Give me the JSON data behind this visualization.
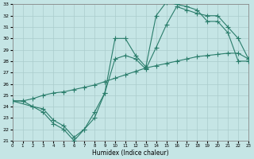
{
  "xlabel": "Humidex (Indice chaleur)",
  "xlim": [
    0,
    23
  ],
  "ylim": [
    21,
    33
  ],
  "xticks": [
    0,
    1,
    2,
    3,
    4,
    5,
    6,
    7,
    8,
    9,
    10,
    11,
    12,
    13,
    14,
    15,
    16,
    17,
    18,
    19,
    20,
    21,
    22,
    23
  ],
  "yticks": [
    21,
    22,
    23,
    24,
    25,
    26,
    27,
    28,
    29,
    30,
    31,
    32,
    33
  ],
  "line_color": "#2a7d6b",
  "bg_color": "#c5e5e5",
  "grid_color": "#aacccc",
  "line1_x": [
    0,
    1,
    2,
    3,
    4,
    5,
    6,
    7,
    8,
    9,
    10,
    11,
    12,
    13,
    14,
    15,
    16,
    17,
    18,
    19,
    20,
    21,
    22,
    23
  ],
  "line1_y": [
    24.5,
    24.5,
    24.0,
    23.5,
    22.5,
    22.0,
    21.0,
    22.0,
    23.0,
    25.2,
    30.0,
    30.0,
    28.5,
    27.5,
    32.0,
    33.2,
    33.0,
    32.8,
    32.5,
    31.5,
    31.5,
    30.5,
    28.0,
    28.0
  ],
  "line2_x": [
    0,
    2,
    3,
    4,
    5,
    6,
    7,
    8,
    9,
    10,
    11,
    12,
    13,
    14,
    15,
    16,
    17,
    18,
    19,
    20,
    21,
    22,
    23
  ],
  "line2_y": [
    24.5,
    24.0,
    23.8,
    22.8,
    22.3,
    21.3,
    22.0,
    23.5,
    25.2,
    28.2,
    28.5,
    28.2,
    27.3,
    29.2,
    31.2,
    32.8,
    32.5,
    32.2,
    32.0,
    32.0,
    31.0,
    30.0,
    28.2
  ],
  "line3_x": [
    0,
    1,
    2,
    3,
    4,
    5,
    6,
    7,
    8,
    9,
    10,
    11,
    12,
    13,
    14,
    15,
    16,
    17,
    18,
    19,
    20,
    21,
    22,
    23
  ],
  "line3_y": [
    24.5,
    24.5,
    24.7,
    25.0,
    25.2,
    25.3,
    25.5,
    25.7,
    25.9,
    26.2,
    26.5,
    26.8,
    27.1,
    27.4,
    27.6,
    27.8,
    28.0,
    28.2,
    28.4,
    28.5,
    28.6,
    28.7,
    28.7,
    28.2
  ]
}
